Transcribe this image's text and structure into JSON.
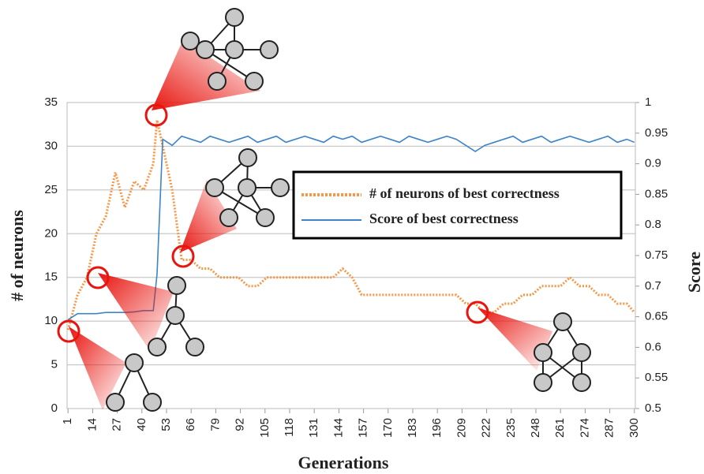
{
  "chart_data": {
    "type": "line",
    "x_label": "Generations",
    "y_label": "# of neurons",
    "y2_label": "Score",
    "x": [
      1,
      6,
      11,
      16,
      21,
      26,
      31,
      36,
      41,
      46,
      48,
      51,
      56,
      61,
      66,
      71,
      76,
      81,
      86,
      91,
      96,
      101,
      106,
      111,
      116,
      121,
      126,
      131,
      136,
      141,
      146,
      151,
      156,
      161,
      166,
      171,
      176,
      181,
      186,
      191,
      196,
      201,
      206,
      211,
      216,
      221,
      226,
      231,
      236,
      241,
      246,
      251,
      256,
      261,
      266,
      271,
      276,
      281,
      286,
      291,
      296,
      300
    ],
    "series": [
      {
        "name": "# of neurons of best correctness",
        "color": "#f79646",
        "style": "dotted",
        "values": [
          9,
          13,
          15,
          20,
          22,
          27,
          23,
          26,
          25,
          28,
          33,
          30,
          25,
          17,
          17,
          16,
          16,
          15,
          15,
          15,
          14,
          14,
          15,
          15,
          15,
          15,
          15,
          15,
          15,
          15,
          16,
          15,
          13,
          13,
          13,
          13,
          13,
          13,
          13,
          13,
          13,
          13,
          13,
          12,
          12,
          11,
          11,
          12,
          12,
          13,
          13,
          14,
          14,
          14,
          15,
          14,
          14,
          13,
          13,
          12,
          12,
          11
        ]
      },
      {
        "name": "Score of best correctness",
        "color": "#3d85c6",
        "style": "solid",
        "axis": "y2",
        "values": [
          0.645,
          0.655,
          0.655,
          0.655,
          0.657,
          0.657,
          0.657,
          0.658,
          0.66,
          0.66,
          0.72,
          0.94,
          0.93,
          0.945,
          0.94,
          0.935,
          0.945,
          0.94,
          0.935,
          0.94,
          0.945,
          0.935,
          0.94,
          0.945,
          0.935,
          0.94,
          0.945,
          0.94,
          0.935,
          0.945,
          0.94,
          0.945,
          0.935,
          0.94,
          0.945,
          0.94,
          0.935,
          0.945,
          0.94,
          0.935,
          0.94,
          0.945,
          0.94,
          0.93,
          0.92,
          0.93,
          0.935,
          0.94,
          0.945,
          0.935,
          0.94,
          0.945,
          0.935,
          0.94,
          0.945,
          0.94,
          0.935,
          0.94,
          0.945,
          0.935,
          0.94,
          0.935
        ]
      }
    ],
    "xlim": [
      0.5,
      300.5
    ],
    "xticks": [
      1,
      14,
      27,
      40,
      53,
      66,
      79,
      92,
      105,
      118,
      131,
      144,
      157,
      170,
      183,
      196,
      209,
      222,
      235,
      248,
      261,
      274,
      287,
      300
    ],
    "ylim": [
      0,
      35
    ],
    "yticks": [
      0,
      5,
      10,
      15,
      20,
      25,
      30,
      35
    ],
    "y2lim": [
      0.5,
      1
    ],
    "y2ticks": [
      0.5,
      0.55,
      0.6,
      0.65,
      0.7,
      0.75,
      0.8,
      0.85,
      0.9,
      0.95,
      1
    ],
    "grid": true,
    "legend_position": "center right"
  }
}
